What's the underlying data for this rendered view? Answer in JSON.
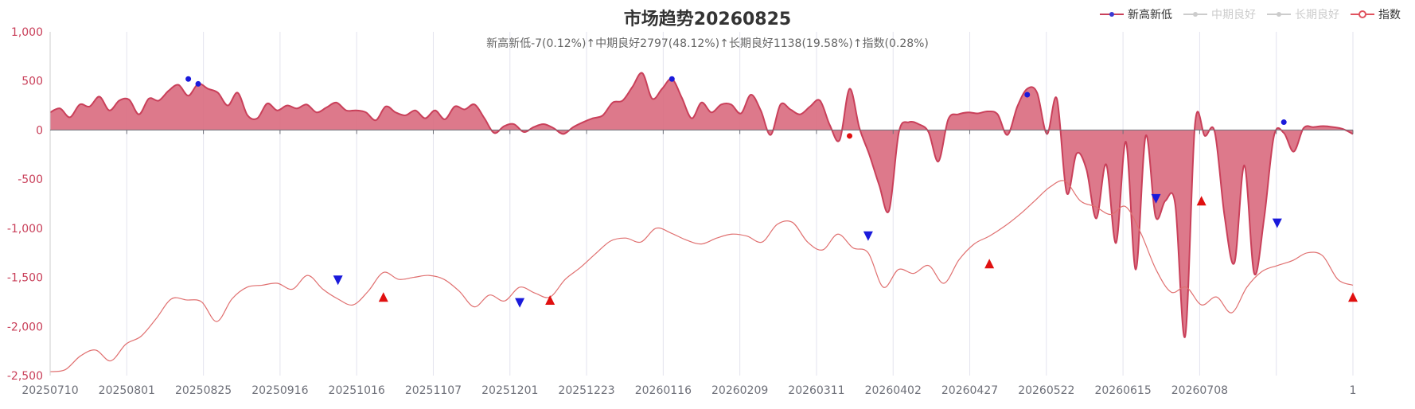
{
  "chart_data": {
    "type": "area",
    "title": "市场趋势20260825",
    "subtitle": "新高新低-7(0.12%)↑中期良好2797(48.12%)↑长期良好1138(19.58%)↑指数(0.28%)",
    "ylim": [
      -2500,
      1000
    ],
    "yticks": [
      1000,
      500,
      0,
      -500,
      -1000,
      -1500,
      -2000,
      -2500
    ],
    "ytick_labels": [
      "1,000",
      "500",
      "0",
      "-500",
      "-1,000",
      "-1,500",
      "-2,000",
      "-2,500"
    ],
    "xtick_labels": [
      "20250710",
      "20250801",
      "20250825",
      "20250916",
      "20251016",
      "20251107",
      "20251201",
      "20251223",
      "20260116",
      "20260209",
      "20260311",
      "20260402",
      "20260427",
      "20260522",
      "20260615",
      "20260708",
      "",
      "1"
    ],
    "grid": true,
    "legend_position": "top-right",
    "legend": [
      {
        "name": "新高新低",
        "color": "#c9405a",
        "marker": "#3b3bd4",
        "active": true
      },
      {
        "name": "中期良好",
        "color": "#cccccc",
        "marker": "#cccccc",
        "active": false
      },
      {
        "name": "长期良好",
        "color": "#cccccc",
        "marker": "#cccccc",
        "active": false
      },
      {
        "name": "指数",
        "color": "#e0535f",
        "marker": "#e0535f",
        "active": true
      }
    ],
    "series": [
      {
        "name": "新高新低",
        "color": "#c9405a",
        "fill": "#d96a7e",
        "values": [
          180,
          220,
          130,
          260,
          240,
          340,
          200,
          300,
          310,
          160,
          320,
          300,
          400,
          460,
          350,
          470,
          420,
          380,
          250,
          380,
          150,
          120,
          270,
          200,
          250,
          220,
          260,
          180,
          230,
          280,
          200,
          200,
          180,
          100,
          240,
          180,
          150,
          200,
          120,
          200,
          110,
          240,
          210,
          260,
          120,
          -30,
          40,
          60,
          -20,
          30,
          60,
          20,
          -40,
          30,
          80,
          120,
          150,
          280,
          300,
          440,
          580,
          320,
          420,
          520,
          330,
          120,
          280,
          180,
          260,
          260,
          170,
          360,
          200,
          -50,
          260,
          210,
          160,
          240,
          300,
          50,
          -100,
          420,
          20,
          -250,
          -560,
          -820,
          -20,
          80,
          60,
          -20,
          -320,
          110,
          160,
          180,
          170,
          190,
          160,
          -50,
          240,
          420,
          380,
          -40,
          320,
          -640,
          -240,
          -400,
          -900,
          -350,
          -1150,
          -120,
          -1420,
          -60,
          -880,
          -720,
          -760,
          -2100,
          60,
          -60,
          -20,
          -880,
          -1350,
          -360,
          -1460,
          -900,
          -60,
          -30,
          -220,
          20,
          30,
          40,
          30,
          10,
          -40
        ],
        "markers": [
          {
            "index": 14,
            "value": 520,
            "color": "#1a1adb"
          },
          {
            "index": 15,
            "value": 470,
            "color": "#1a1adb"
          },
          {
            "index": 63,
            "value": 520,
            "color": "#1a1adb"
          },
          {
            "index": 81,
            "value": -60,
            "color": "#e01010"
          },
          {
            "index": 99,
            "value": 360,
            "color": "#1a1adb"
          },
          {
            "index": 125,
            "value": 80,
            "color": "#1a1adb"
          }
        ]
      },
      {
        "name": "指数",
        "color": "#e07070",
        "values": [
          -2460,
          -2440,
          -2300,
          -2240,
          -2350,
          -2180,
          -2100,
          -1920,
          -1720,
          -1730,
          -1750,
          -1950,
          -1720,
          -1600,
          -1580,
          -1560,
          -1620,
          -1480,
          -1620,
          -1720,
          -1780,
          -1640,
          -1450,
          -1520,
          -1500,
          -1480,
          -1520,
          -1640,
          -1800,
          -1680,
          -1740,
          -1600,
          -1660,
          -1700,
          -1520,
          -1400,
          -1260,
          -1130,
          -1100,
          -1140,
          -1000,
          -1050,
          -1120,
          -1160,
          -1100,
          -1060,
          -1080,
          -1140,
          -960,
          -940,
          -1140,
          -1220,
          -1060,
          -1200,
          -1250,
          -1600,
          -1420,
          -1460,
          -1380,
          -1560,
          -1320,
          -1160,
          -1080,
          -980,
          -860,
          -720,
          -580,
          -520,
          -720,
          -780,
          -860,
          -780,
          -1050,
          -1420,
          -1650,
          -1600,
          -1780,
          -1700,
          -1860,
          -1600,
          -1440,
          -1380,
          -1330,
          -1250,
          -1280,
          -1520,
          -1580
        ],
        "markers": [
          {
            "index": 19,
            "value": -1530,
            "shape": "down",
            "color": "#1a1adb"
          },
          {
            "index": 22,
            "value": -1700,
            "shape": "up",
            "color": "#e01010"
          },
          {
            "index": 31,
            "value": -1760,
            "shape": "down",
            "color": "#1a1adb"
          },
          {
            "index": 33,
            "value": -1730,
            "shape": "up",
            "color": "#e01010"
          },
          {
            "index": 54,
            "value": -1080,
            "shape": "down",
            "color": "#1a1adb"
          },
          {
            "index": 62,
            "value": -1360,
            "shape": "up",
            "color": "#e01010"
          },
          {
            "index": 73,
            "value": -700,
            "shape": "down",
            "color": "#1a1adb"
          },
          {
            "index": 76,
            "value": -720,
            "shape": "up",
            "color": "#e01010"
          },
          {
            "index": 81,
            "value": -950,
            "shape": "down",
            "color": "#1a1adb"
          },
          {
            "index": 86,
            "value": -1700,
            "shape": "up",
            "color": "#e01010"
          }
        ]
      }
    ]
  }
}
